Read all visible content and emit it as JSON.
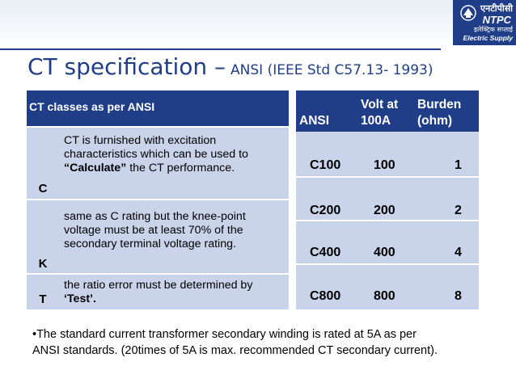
{
  "logo": {
    "hindi_name": "एनटीपीसी",
    "name": "NTPC",
    "hindi_tagline": "इलेक्ट्रिक सप्लाई",
    "tagline": "Electric Supply"
  },
  "title": {
    "main": "CT specification –",
    "sub": "ANSI (IEEE Std C57.13- 1993)"
  },
  "ct_classes": {
    "header": "CT classes as per ANSI",
    "rows": [
      {
        "key": "C",
        "desc_a": "CT is furnished with excitation characteristics which can be used to ",
        "desc_bold": "“Calculate”",
        "desc_b": " the CT performance."
      },
      {
        "key": "K",
        "desc_a": "same as C rating but the knee-point voltage must be at least 70% of the secondary terminal voltage rating.",
        "desc_bold": "",
        "desc_b": ""
      },
      {
        "key": "T",
        "desc_a": "the ratio error must be determined by ",
        "desc_bold": "‘Test’.",
        "desc_b": ""
      }
    ]
  },
  "ansi_table": {
    "headers": {
      "ansi": "ANSI",
      "volt_line1": "Volt at",
      "volt_line2": "100A",
      "burden_line1": "Burden",
      "burden_line2": "(ohm)"
    },
    "rows": [
      {
        "ansi": "C100",
        "volt": "100",
        "burden": "1"
      },
      {
        "ansi": "C200",
        "volt": "200",
        "burden": "2"
      },
      {
        "ansi": "C400",
        "volt": "400",
        "burden": "4"
      },
      {
        "ansi": "C800",
        "volt": "800",
        "burden": "8"
      }
    ]
  },
  "footnote": {
    "line1": "•The standard current transformer secondary winding is rated at 5A as per",
    "line2": "ANSI standards. (20times of 5A is max. recommended CT secondary current)."
  },
  "colors": {
    "accent": "#1f3e87",
    "row_fill": "#c9d3ea"
  }
}
